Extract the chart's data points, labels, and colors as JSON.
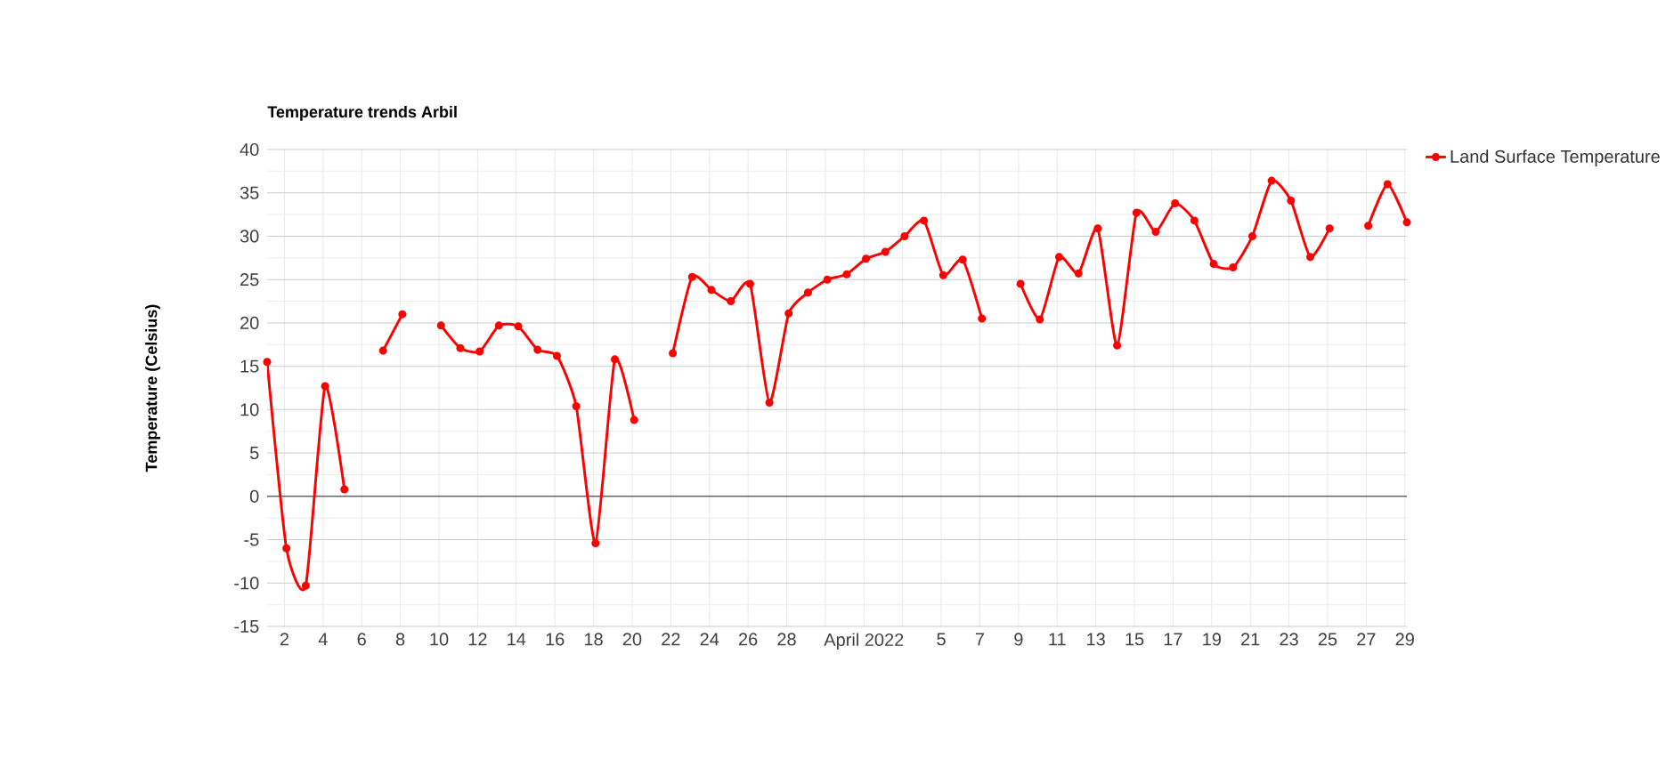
{
  "chart_data": {
    "type": "line",
    "title": "Temperature trends Arbil",
    "ylabel": "Temperature (Celsius)",
    "x": [
      "2022-03-01T02:30",
      "2022-03-02T02:30",
      "2022-03-03T02:30",
      "2022-03-04T02:30",
      "2022-03-05T02:30",
      "2022-03-06T02:30",
      "2022-03-07T02:30",
      "2022-03-08T02:30",
      "2022-03-09T02:30",
      "2022-03-10T02:30",
      "2022-03-11T02:30",
      "2022-03-12T02:30",
      "2022-03-13T02:30",
      "2022-03-14T02:30",
      "2022-03-15T02:30",
      "2022-03-16T02:30",
      "2022-03-17T02:30",
      "2022-03-18T02:30",
      "2022-03-19T02:30",
      "2022-03-20T02:30",
      "2022-03-21T02:30",
      "2022-03-22T02:30",
      "2022-03-23T02:30",
      "2022-03-24T02:30",
      "2022-03-25T02:30",
      "2022-03-26T02:30",
      "2022-03-27T02:30",
      "2022-03-28T02:30",
      "2022-03-29T02:30",
      "2022-03-30T02:30",
      "2022-03-31T02:30",
      "2022-04-01T02:30",
      "2022-04-02T02:30",
      "2022-04-03T02:30",
      "2022-04-04T02:30",
      "2022-04-05T02:30",
      "2022-04-06T02:30",
      "2022-04-07T02:30",
      "2022-04-08T02:30",
      "2022-04-09T02:30",
      "2022-04-10T02:30",
      "2022-04-11T02:30",
      "2022-04-12T02:30",
      "2022-04-13T02:30",
      "2022-04-14T02:30",
      "2022-04-15T02:30",
      "2022-04-16T02:30",
      "2022-04-17T02:30",
      "2022-04-18T02:30",
      "2022-04-19T02:30",
      "2022-04-20T02:30",
      "2022-04-21T02:30",
      "2022-04-22T02:30",
      "2022-04-23T02:30",
      "2022-04-24T02:30",
      "2022-04-25T02:30",
      "2022-04-26T02:30",
      "2022-04-27T02:30",
      "2022-04-28T02:30",
      "2022-04-29T02:30"
    ],
    "series": [
      {
        "name": "Land Surface Temperature",
        "color": "#ff0000",
        "values": [
          15.5,
          -6,
          -10.3,
          12.7,
          0.8,
          null,
          16.8,
          21.0,
          null,
          19.7,
          17.1,
          16.7,
          19.7,
          19.6,
          16.9,
          16.2,
          10.4,
          -5.4,
          15.8,
          8.8,
          null,
          16.5,
          25.3,
          23.8,
          22.5,
          24.5,
          10.8,
          21.1,
          23.5,
          25.0,
          25.6,
          27.4,
          28.2,
          30.0,
          31.8,
          25.5,
          27.3,
          20.5,
          null,
          24.5,
          20.4,
          27.6,
          25.7,
          30.9,
          17.4,
          32.7,
          30.5,
          33.8,
          31.8,
          26.8,
          26.4,
          30.0,
          36.4,
          34.1,
          27.6,
          30.9,
          null,
          31.2,
          36.0,
          31.6
        ]
      }
    ],
    "xlim": [
      "2022-03-01T02:30",
      "2022-04-29T02:30"
    ],
    "xticks": [
      {
        "value": "2022-03-02",
        "label": "2"
      },
      {
        "value": "2022-03-04",
        "label": "4"
      },
      {
        "value": "2022-03-06",
        "label": "6"
      },
      {
        "value": "2022-03-08",
        "label": "8"
      },
      {
        "value": "2022-03-10",
        "label": "10"
      },
      {
        "value": "2022-03-12",
        "label": "12"
      },
      {
        "value": "2022-03-14",
        "label": "14"
      },
      {
        "value": "2022-03-16",
        "label": "16"
      },
      {
        "value": "2022-03-18",
        "label": "18"
      },
      {
        "value": "2022-03-20",
        "label": "20"
      },
      {
        "value": "2022-03-22",
        "label": "22"
      },
      {
        "value": "2022-03-24",
        "label": "24"
      },
      {
        "value": "2022-03-26",
        "label": "26"
      },
      {
        "value": "2022-03-28",
        "label": "28"
      },
      {
        "value": "2022-03-30",
        "label": null
      },
      {
        "value": "2022-04-01",
        "label": "April 2022"
      },
      {
        "value": "2022-04-03",
        "label": null
      },
      {
        "value": "2022-04-05",
        "label": "5"
      },
      {
        "value": "2022-04-07",
        "label": "7"
      },
      {
        "value": "2022-04-09",
        "label": "9"
      },
      {
        "value": "2022-04-11",
        "label": "11"
      },
      {
        "value": "2022-04-13",
        "label": "13"
      },
      {
        "value": "2022-04-15",
        "label": "15"
      },
      {
        "value": "2022-04-17",
        "label": "17"
      },
      {
        "value": "2022-04-19",
        "label": "19"
      },
      {
        "value": "2022-04-21",
        "label": "21"
      },
      {
        "value": "2022-04-23",
        "label": "23"
      },
      {
        "value": "2022-04-25",
        "label": "25"
      },
      {
        "value": "2022-04-27",
        "label": "27"
      },
      {
        "value": "2022-04-29",
        "label": "29"
      }
    ],
    "ylim": [
      -15,
      40
    ],
    "yticks": [
      -15,
      -10,
      -5,
      0,
      5,
      10,
      15,
      20,
      25,
      30,
      35,
      40
    ],
    "grid": true,
    "legend": "top right",
    "marker": "circle",
    "line_style": "solid"
  }
}
